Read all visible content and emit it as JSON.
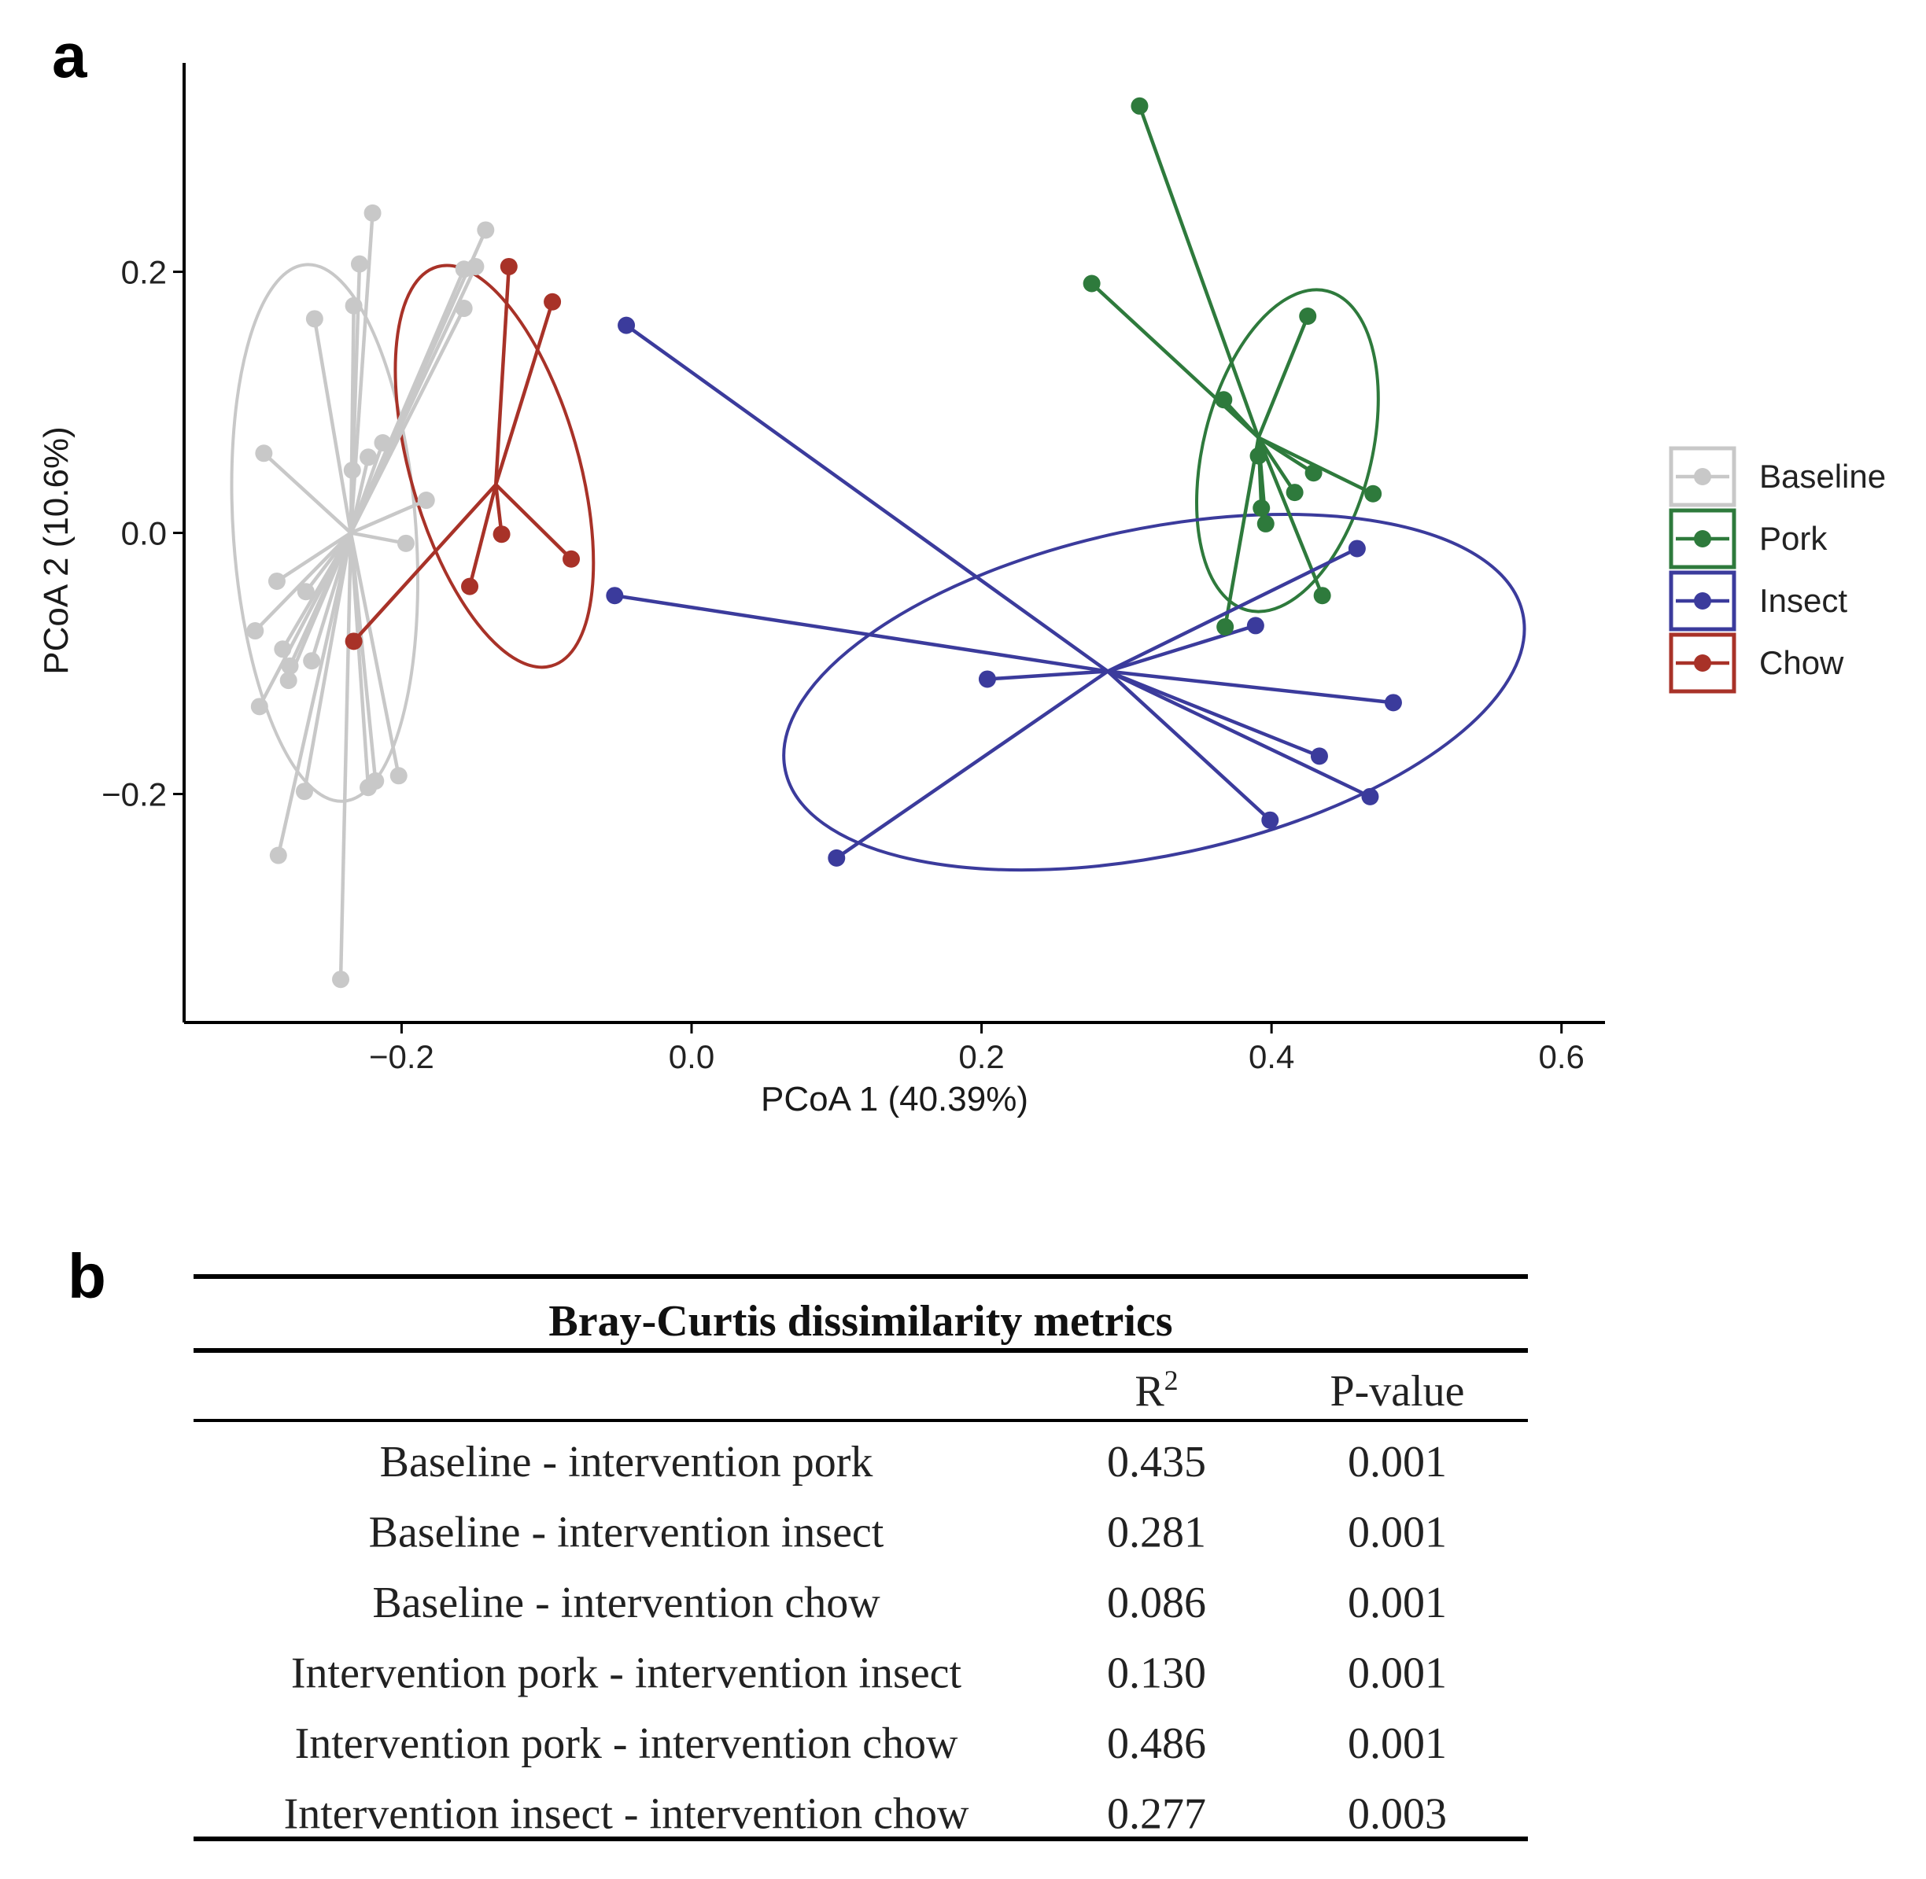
{
  "panel_a_label": "a",
  "panel_b_label": "b",
  "chart_data": {
    "type": "scatter",
    "subtype": "PCoA ordination with group centroids, spider lines and confidence ellipses",
    "xlabel": "PCoA 1 (40.39%)",
    "ylabel": "PCoA 2 (10.6%)",
    "xlim": [
      -0.35,
      0.63
    ],
    "ylim": [
      -0.375,
      0.36
    ],
    "xticks": [
      -0.2,
      0.0,
      0.2,
      0.4,
      0.6
    ],
    "xtick_labels": [
      "−0.2",
      "0.0",
      "0.2",
      "0.4",
      "0.6"
    ],
    "yticks": [
      -0.2,
      0.0,
      0.2
    ],
    "ytick_labels": [
      "−0.2",
      "0.0",
      "0.2"
    ],
    "grid": false,
    "legend": {
      "position": "right"
    },
    "series": [
      {
        "name": "Baseline",
        "color": "#c8c8c8",
        "centroid": [
          -0.235,
          0.0
        ],
        "ellipse": {
          "cx": -0.253,
          "cy": 0.0,
          "rx": 0.063,
          "ry": 0.206,
          "angle_deg": 4
        },
        "points": [
          [
            -0.22,
            0.245
          ],
          [
            -0.142,
            0.232
          ],
          [
            -0.229,
            0.206
          ],
          [
            -0.157,
            0.202
          ],
          [
            -0.149,
            0.204
          ],
          [
            -0.233,
            0.174
          ],
          [
            -0.26,
            0.164
          ],
          [
            -0.157,
            0.172
          ],
          [
            -0.213,
            0.069
          ],
          [
            -0.223,
            0.058
          ],
          [
            -0.295,
            0.061
          ],
          [
            -0.234,
            0.048
          ],
          [
            -0.183,
            0.025
          ],
          [
            -0.197,
            -0.008
          ],
          [
            -0.286,
            -0.037
          ],
          [
            -0.266,
            -0.045
          ],
          [
            -0.301,
            -0.075
          ],
          [
            -0.282,
            -0.089
          ],
          [
            -0.262,
            -0.098
          ],
          [
            -0.278,
            -0.113
          ],
          [
            -0.277,
            -0.102
          ],
          [
            -0.298,
            -0.133
          ],
          [
            -0.267,
            -0.198
          ],
          [
            -0.223,
            -0.195
          ],
          [
            -0.218,
            -0.19
          ],
          [
            -0.202,
            -0.186
          ],
          [
            -0.285,
            -0.247
          ],
          [
            -0.242,
            -0.342
          ]
        ]
      },
      {
        "name": "Pork",
        "color": "#2e7a3c",
        "centroid": [
          0.391,
          0.073
        ],
        "ellipse": {
          "cx": 0.411,
          "cy": 0.063,
          "rx": 0.058,
          "ry": 0.126,
          "angle_deg": -14
        },
        "points": [
          [
            0.309,
            0.327
          ],
          [
            0.276,
            0.191
          ],
          [
            0.425,
            0.166
          ],
          [
            0.367,
            0.102
          ],
          [
            0.391,
            0.059
          ],
          [
            0.429,
            0.046
          ],
          [
            0.416,
            0.031
          ],
          [
            0.393,
            0.019
          ],
          [
            0.396,
            0.007
          ],
          [
            0.47,
            0.03
          ],
          [
            0.435,
            -0.048
          ],
          [
            0.368,
            -0.072
          ]
        ]
      },
      {
        "name": "Insect",
        "color": "#3b3b9c",
        "centroid": [
          0.287,
          -0.106
        ],
        "ellipse": {
          "cx": 0.319,
          "cy": -0.122,
          "rx": 0.26,
          "ry": 0.125,
          "angle_deg": 12
        },
        "points": [
          [
            -0.045,
            0.159
          ],
          [
            -0.053,
            -0.048
          ],
          [
            0.204,
            -0.112
          ],
          [
            0.389,
            -0.071
          ],
          [
            0.459,
            -0.012
          ],
          [
            0.484,
            -0.13
          ],
          [
            0.433,
            -0.171
          ],
          [
            0.468,
            -0.202
          ],
          [
            0.399,
            -0.22
          ],
          [
            0.1,
            -0.249
          ]
        ]
      },
      {
        "name": "Chow",
        "color": "#a83228",
        "centroid": [
          -0.135,
          0.037
        ],
        "ellipse": {
          "cx": -0.136,
          "cy": 0.051,
          "rx": 0.058,
          "ry": 0.159,
          "angle_deg": 16
        },
        "points": [
          [
            -0.126,
            0.204
          ],
          [
            -0.096,
            0.177
          ],
          [
            -0.131,
            -0.001
          ],
          [
            -0.083,
            -0.02
          ],
          [
            -0.153,
            -0.041
          ],
          [
            -0.233,
            -0.083
          ]
        ]
      }
    ]
  },
  "table": {
    "title": "Bray-Curtis dissimilarity metrics",
    "col_r2_base": "R",
    "col_r2_sup": "2",
    "col_p": "P-value",
    "rows": [
      {
        "comparison": "Baseline - intervention pork",
        "r2": "0.435",
        "p": "0.001"
      },
      {
        "comparison": "Baseline - intervention insect",
        "r2": "0.281",
        "p": "0.001"
      },
      {
        "comparison": "Baseline - intervention chow",
        "r2": "0.086",
        "p": "0.001"
      },
      {
        "comparison": "Intervention pork - intervention insect",
        "r2": "0.130",
        "p": "0.001"
      },
      {
        "comparison": "Intervention pork - intervention chow",
        "r2": "0.486",
        "p": "0.001"
      },
      {
        "comparison": "Intervention insect - intervention chow",
        "r2": "0.277",
        "p": "0.003"
      }
    ]
  }
}
